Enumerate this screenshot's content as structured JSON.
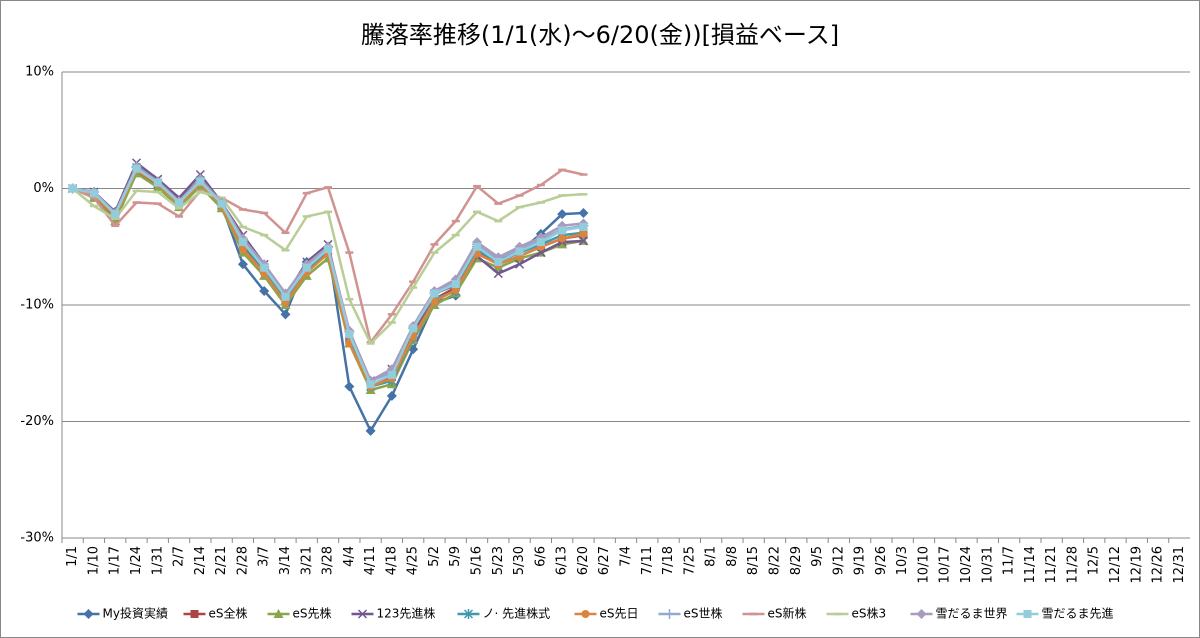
{
  "chart_data": {
    "type": "line",
    "title": "騰落率推移(1/1(水)～6/20(金))[損益ベース]",
    "categories": [
      "1/1",
      "1/10",
      "1/17",
      "1/24",
      "1/31",
      "2/7",
      "2/14",
      "2/21",
      "2/28",
      "3/7",
      "3/14",
      "3/21",
      "3/28",
      "4/4",
      "4/11",
      "4/18",
      "4/25",
      "5/2",
      "5/9",
      "5/16",
      "5/23",
      "5/30",
      "6/6",
      "6/13",
      "6/20",
      "6/27",
      "7/4",
      "7/11",
      "7/18",
      "7/25",
      "8/1",
      "8/8",
      "8/15",
      "8/22",
      "8/29",
      "9/5",
      "9/12",
      "9/19",
      "9/26",
      "10/3",
      "10/10",
      "10/17",
      "10/24",
      "10/31",
      "11/7",
      "11/14",
      "11/21",
      "11/28",
      "12/5",
      "12/12",
      "12/19",
      "12/26",
      "12/31"
    ],
    "ylim": [
      -30,
      10
    ],
    "yticks": [
      {
        "value": -30,
        "label": "-30%"
      },
      {
        "value": -20,
        "label": "-20%"
      },
      {
        "value": -10,
        "label": "-10%"
      },
      {
        "value": 0,
        "label": "0%"
      },
      {
        "value": 10,
        "label": "10%"
      }
    ],
    "grid": true,
    "legend": "bottom",
    "series": [
      {
        "name": "My投資実績",
        "color": "#4572a7",
        "marker": "diamond",
        "values": [
          0,
          -0.3,
          -2,
          1.9,
          0.6,
          -1.0,
          0.8,
          -1.4,
          -6.5,
          -8.8,
          -10.8,
          -6.3,
          -5.0,
          -17,
          -20.8,
          -17.8,
          -13.8,
          -9.8,
          -9.2,
          -5.0,
          -6.1,
          -5.4,
          -3.9,
          -2.2,
          -2.1,
          null,
          null,
          null,
          null,
          null,
          null,
          null,
          null,
          null,
          null,
          null,
          null,
          null,
          null,
          null,
          null,
          null,
          null,
          null,
          null,
          null,
          null,
          null,
          null,
          null,
          null,
          null,
          null
        ]
      },
      {
        "name": "eS全株",
        "color": "#aa4643",
        "marker": "square",
        "values": [
          0,
          -0.5,
          -2.5,
          1.5,
          0.3,
          -1.3,
          0.5,
          -1.5,
          -5,
          -7,
          -9.5,
          -7,
          -5.5,
          -13,
          -16.8,
          -16.2,
          -12.5,
          -9.5,
          -8.5,
          -5.5,
          -6.5,
          -5.8,
          -5,
          -4.3,
          -4,
          null,
          null,
          null,
          null,
          null,
          null,
          null,
          null,
          null,
          null,
          null,
          null,
          null,
          null,
          null,
          null,
          null,
          null,
          null,
          null,
          null,
          null,
          null,
          null,
          null,
          null,
          null,
          null
        ]
      },
      {
        "name": "eS先株",
        "color": "#89a54e",
        "marker": "triangle",
        "values": [
          0,
          -0.8,
          -2.8,
          1.3,
          0.1,
          -1.6,
          0.2,
          -1.7,
          -5.5,
          -7.5,
          -10,
          -7.5,
          -6,
          -13.3,
          -17.3,
          -16.8,
          -13,
          -10,
          -9,
          -6,
          -6.8,
          -6,
          -5.5,
          -4.8,
          -4.5,
          null,
          null,
          null,
          null,
          null,
          null,
          null,
          null,
          null,
          null,
          null,
          null,
          null,
          null,
          null,
          null,
          null,
          null,
          null,
          null,
          null,
          null,
          null,
          null,
          null,
          null,
          null,
          null
        ]
      },
      {
        "name": "123先進株",
        "color": "#71588f",
        "marker": "x",
        "values": [
          0,
          -0.3,
          -2,
          2.2,
          0.8,
          -0.8,
          1.2,
          -1.2,
          -4,
          -6.5,
          -9.2,
          -6.3,
          -4.8,
          -12.5,
          -16.5,
          -15.5,
          -12.2,
          -9,
          -8.3,
          -5.8,
          -7.3,
          -6.5,
          -5.5,
          -4.6,
          -4.5,
          null,
          null,
          null,
          null,
          null,
          null,
          null,
          null,
          null,
          null,
          null,
          null,
          null,
          null,
          null,
          null,
          null,
          null,
          null,
          null,
          null,
          null,
          null,
          null,
          null,
          null,
          null,
          null
        ]
      },
      {
        "name": "ノ· 先進株式",
        "color": "#4198af",
        "marker": "star",
        "values": [
          0,
          -0.4,
          -2.3,
          1.8,
          0.5,
          -1.2,
          0.7,
          -1.4,
          -4.8,
          -7,
          -9.6,
          -7,
          -5.3,
          -12.8,
          -17,
          -16.5,
          -12.8,
          -9.5,
          -8.8,
          -5.3,
          -6.3,
          -5.5,
          -4.8,
          -4,
          -3.8,
          null,
          null,
          null,
          null,
          null,
          null,
          null,
          null,
          null,
          null,
          null,
          null,
          null,
          null,
          null,
          null,
          null,
          null,
          null,
          null,
          null,
          null,
          null,
          null,
          null,
          null,
          null,
          null
        ]
      },
      {
        "name": "eS先日",
        "color": "#db843d",
        "marker": "circle",
        "values": [
          0,
          -0.5,
          -2.4,
          1.6,
          0.4,
          -1.4,
          0.5,
          -1.5,
          -5.2,
          -7.3,
          -9.8,
          -7.2,
          -5.6,
          -13.3,
          -17,
          -16.3,
          -12.7,
          -9.7,
          -8.7,
          -5.6,
          -6.5,
          -5.8,
          -5,
          -4.3,
          -3.9,
          null,
          null,
          null,
          null,
          null,
          null,
          null,
          null,
          null,
          null,
          null,
          null,
          null,
          null,
          null,
          null,
          null,
          null,
          null,
          null,
          null,
          null,
          null,
          null,
          null,
          null,
          null,
          null
        ]
      },
      {
        "name": "eS世株",
        "color": "#93a9cf",
        "marker": "plus",
        "values": [
          0,
          -0.3,
          -2.2,
          1.8,
          0.6,
          -1.1,
          0.8,
          -1.2,
          -4.5,
          -6.7,
          -9.2,
          -6.6,
          -5,
          -12.3,
          -16.5,
          -15.8,
          -12,
          -9,
          -8,
          -4.8,
          -6,
          -5.2,
          -4.4,
          -3.5,
          -3.2,
          null,
          null,
          null,
          null,
          null,
          null,
          null,
          null,
          null,
          null,
          null,
          null,
          null,
          null,
          null,
          null,
          null,
          null,
          null,
          null,
          null,
          null,
          null,
          null,
          null,
          null,
          null,
          null
        ]
      },
      {
        "name": "eS新株",
        "color": "#d19392",
        "marker": "dash",
        "values": [
          0,
          -0.8,
          -3.2,
          -1.2,
          -1.3,
          -2.4,
          -0.2,
          -0.8,
          -1.8,
          -2.1,
          -3.8,
          -0.4,
          0.1,
          -5.5,
          -13.2,
          -10.8,
          -8,
          -4.8,
          -2.8,
          0.2,
          -1.3,
          -0.6,
          0.3,
          1.6,
          1.2,
          null,
          null,
          null,
          null,
          null,
          null,
          null,
          null,
          null,
          null,
          null,
          null,
          null,
          null,
          null,
          null,
          null,
          null,
          null,
          null,
          null,
          null,
          null,
          null,
          null,
          null,
          null,
          null
        ]
      },
      {
        "name": "eS株3",
        "color": "#b9cd96",
        "marker": "dash",
        "values": [
          0,
          -1.5,
          -2.6,
          -0.2,
          -0.3,
          -1.7,
          -0.3,
          -0.8,
          -3.3,
          -4,
          -5.3,
          -2.4,
          -2,
          -9.5,
          -13.3,
          -11.5,
          -8.5,
          -5.5,
          -4,
          -2,
          -2.8,
          -1.6,
          -1.2,
          -0.6,
          -0.5,
          null,
          null,
          null,
          null,
          null,
          null,
          null,
          null,
          null,
          null,
          null,
          null,
          null,
          null,
          null,
          null,
          null,
          null,
          null,
          null,
          null,
          null,
          null,
          null,
          null,
          null,
          null,
          null
        ]
      },
      {
        "name": "雪だるま世界",
        "color": "#a99bbd",
        "marker": "diamond",
        "values": [
          0,
          -0.3,
          -2.1,
          1.9,
          0.6,
          -1.1,
          0.8,
          -1.2,
          -4.3,
          -6.5,
          -9,
          -6.5,
          -5,
          -12.2,
          -16.5,
          -15.5,
          -11.8,
          -8.8,
          -7.8,
          -4.6,
          -5.9,
          -5,
          -4.2,
          -3.2,
          -3,
          null,
          null,
          null,
          null,
          null,
          null,
          null,
          null,
          null,
          null,
          null,
          null,
          null,
          null,
          null,
          null,
          null,
          null,
          null,
          null,
          null,
          null,
          null,
          null,
          null,
          null,
          null,
          null
        ]
      },
      {
        "name": "雪だるま先進",
        "color": "#92cddc",
        "marker": "square",
        "values": [
          0,
          -0.4,
          -2.2,
          1.7,
          0.5,
          -1.2,
          0.6,
          -1.3,
          -4.6,
          -6.8,
          -9.3,
          -6.8,
          -5.2,
          -12.5,
          -16.8,
          -16,
          -12,
          -9,
          -8.2,
          -5,
          -6.3,
          -5.4,
          -4.6,
          -3.6,
          -3.3,
          null,
          null,
          null,
          null,
          null,
          null,
          null,
          null,
          null,
          null,
          null,
          null,
          null,
          null,
          null,
          null,
          null,
          null,
          null,
          null,
          null,
          null,
          null,
          null,
          null,
          null,
          null,
          null
        ]
      }
    ]
  }
}
